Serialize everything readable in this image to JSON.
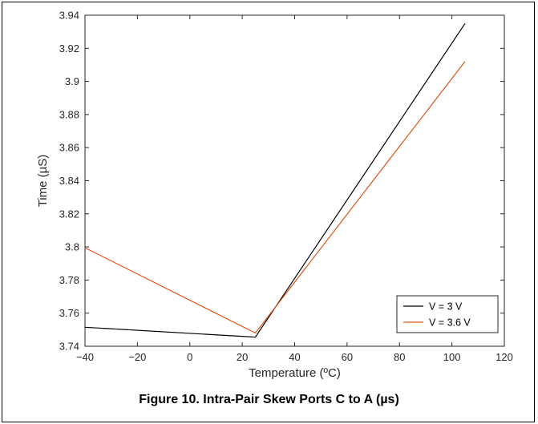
{
  "caption": "Figure 10.  Intra-Pair Skew Ports C to A (µs)",
  "chart_data": {
    "type": "line",
    "title": "",
    "xlabel": "Temperature (ºC)",
    "ylabel": "Time (µS)",
    "xlim": [
      -40,
      120
    ],
    "ylim": [
      3.74,
      3.94
    ],
    "xticks": [
      -40,
      -20,
      0,
      20,
      40,
      60,
      80,
      100,
      120
    ],
    "xtick_labels": [
      "−40",
      "−20",
      "0",
      "20",
      "40",
      "60",
      "80",
      "100",
      "120"
    ],
    "yticks": [
      3.74,
      3.76,
      3.78,
      3.8,
      3.82,
      3.84,
      3.86,
      3.88,
      3.9,
      3.92,
      3.94
    ],
    "ytick_labels": [
      "3.74",
      "3.76",
      "3.78",
      "3.8",
      "3.82",
      "3.84",
      "3.86",
      "3.88",
      "3.9",
      "3.92",
      "3.94"
    ],
    "grid": false,
    "legend_position": "bottom-right",
    "series": [
      {
        "name": "V = 3 V",
        "color": "#000000",
        "x": [
          -40,
          25,
          105
        ],
        "y": [
          3.7515,
          3.7455,
          3.935
        ]
      },
      {
        "name": "V = 3.6 V",
        "color": "#d95319",
        "x": [
          -40,
          25,
          105
        ],
        "y": [
          3.7995,
          3.748,
          3.912
        ]
      }
    ]
  }
}
